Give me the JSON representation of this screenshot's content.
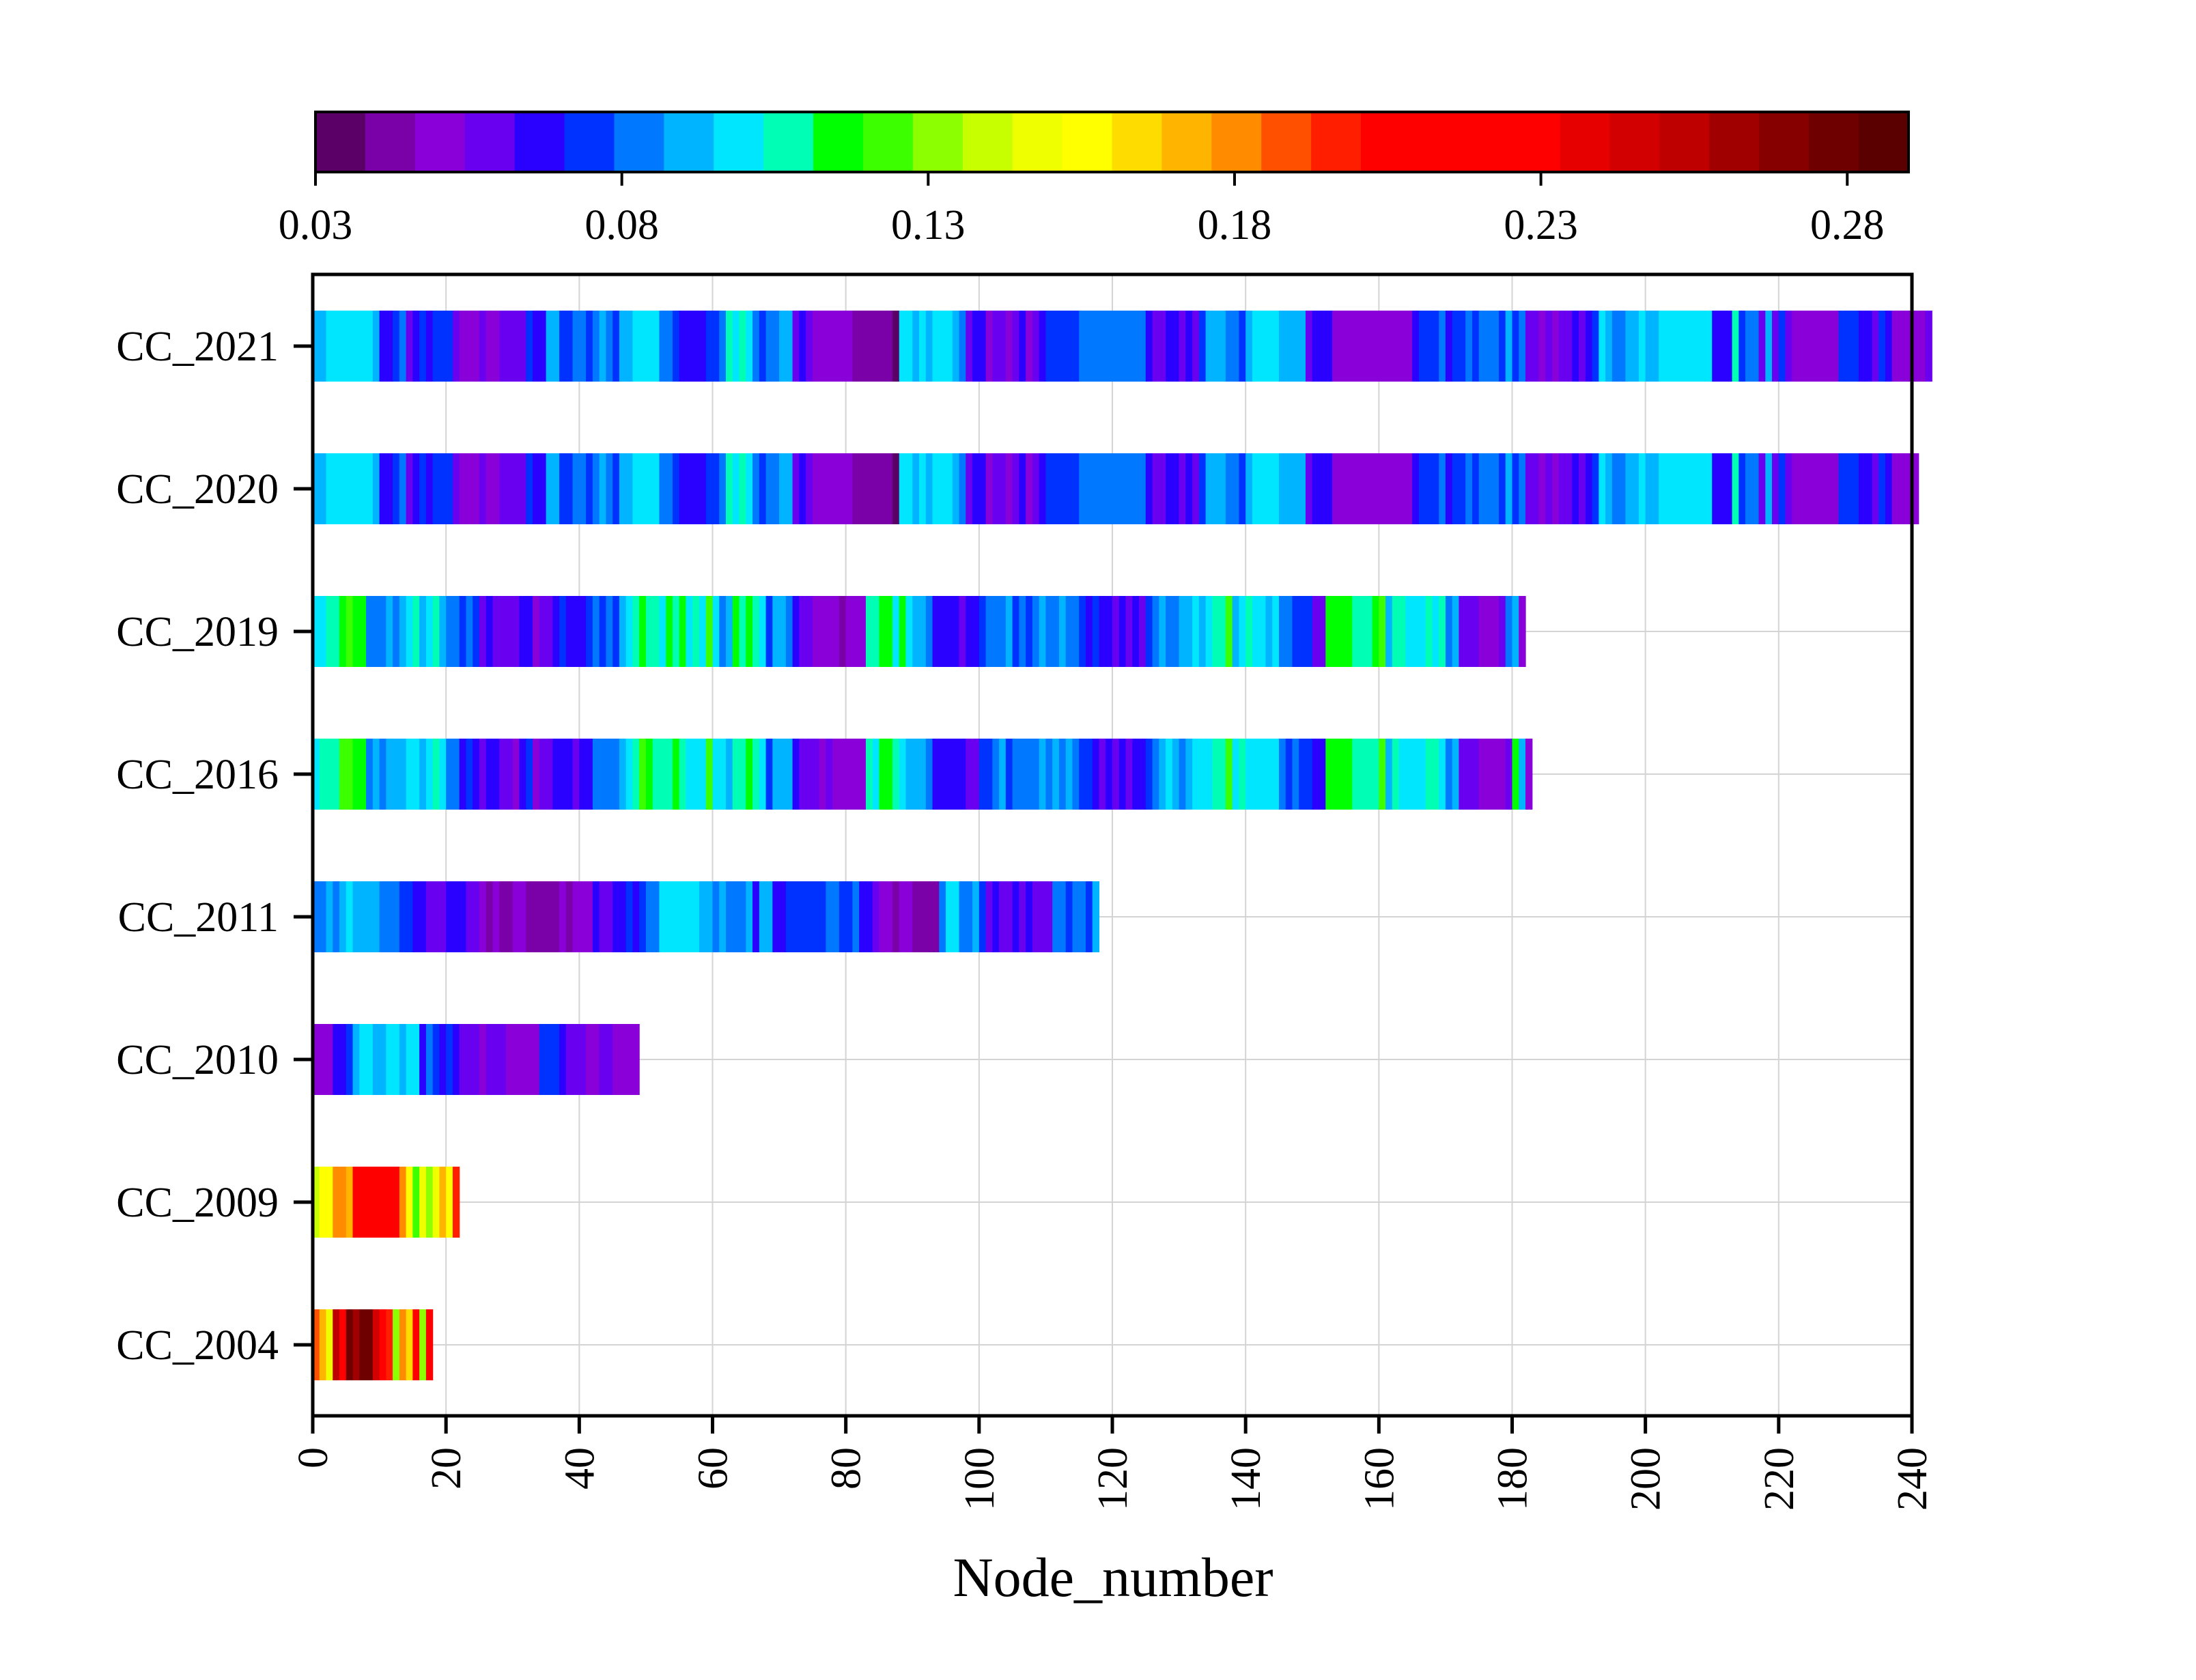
{
  "chart_data": {
    "type": "heatmap",
    "title": "",
    "xlabel": "Node_number",
    "ylabel": "",
    "xlim": [
      0,
      240
    ],
    "x_ticks": [
      0,
      20,
      40,
      60,
      80,
      100,
      120,
      140,
      160,
      180,
      200,
      220,
      240
    ],
    "grid": true,
    "colorbar": {
      "position": "top",
      "range": [
        0.03,
        0.29
      ],
      "ticks": [
        0.03,
        0.08,
        0.13,
        0.18,
        0.23,
        0.28
      ],
      "tick_labels": [
        "0.03",
        "0.08",
        "0.13",
        "0.18",
        "0.23",
        "0.28"
      ],
      "colors": [
        "#5a0066",
        "#7a00a8",
        "#8a00d8",
        "#6a00f0",
        "#2a00ff",
        "#0032ff",
        "#0078ff",
        "#00b4ff",
        "#00e6ff",
        "#00ffb4",
        "#00ff00",
        "#3cff00",
        "#8cff00",
        "#c8ff00",
        "#f0ff00",
        "#ffff00",
        "#ffdc00",
        "#ffb400",
        "#ff8c00",
        "#ff5000",
        "#ff1e00",
        "#ff0000",
        "#ff0000",
        "#ff0000",
        "#ff0000",
        "#e60000",
        "#d20000",
        "#be0000",
        "#a00000",
        "#870000",
        "#6e0000",
        "#5a0000"
      ]
    },
    "series": [
      {
        "name": "CC_2021",
        "values": [
          0.09,
          0.093,
          0.096,
          0.099,
          0.101,
          0.097,
          0.098,
          0.1,
          0.101,
          0.09,
          0.065,
          0.07,
          0.072,
          0.08,
          0.06,
          0.063,
          0.078,
          0.07,
          0.075,
          0.072,
          0.073,
          0.06,
          0.051,
          0.052,
          0.053,
          0.055,
          0.053,
          0.052,
          0.056,
          0.058,
          0.057,
          0.059,
          0.073,
          0.07,
          0.07,
          0.087,
          0.094,
          0.076,
          0.075,
          0.08,
          0.081,
          0.074,
          0.084,
          0.087,
          0.082,
          0.078,
          0.089,
          0.087,
          0.099,
          0.097,
          0.1,
          0.096,
          0.08,
          0.082,
          0.077,
          0.065,
          0.067,
          0.067,
          0.068,
          0.073,
          0.075,
          0.08,
          0.109,
          0.103,
          0.107,
          0.095,
          0.083,
          0.072,
          0.08,
          0.081,
          0.091,
          0.087,
          0.06,
          0.063,
          0.055,
          0.052,
          0.053,
          0.054,
          0.054,
          0.049,
          0.048,
          0.043,
          0.044,
          0.041,
          0.044,
          0.041,
          0.039,
          0.036,
          0.098,
          0.096,
          0.09,
          0.097,
          0.094,
          0.097,
          0.096,
          0.101,
          0.091,
          0.079,
          0.062,
          0.063,
          0.063,
          0.051,
          0.057,
          0.055,
          0.052,
          0.057,
          0.063,
          0.053,
          0.061,
          0.07,
          0.077,
          0.077,
          0.073,
          0.077,
          0.076,
          0.079,
          0.083,
          0.083,
          0.085,
          0.079,
          0.081,
          0.08,
          0.083,
          0.08,
          0.085,
          0.064,
          0.061,
          0.061,
          0.066,
          0.064,
          0.061,
          0.064,
          0.061,
          0.074,
          0.087,
          0.091,
          0.087,
          0.085,
          0.082,
          0.074,
          0.088,
          0.099,
          0.1,
          0.1,
          0.095,
          0.094,
          0.091,
          0.093,
          0.092,
          0.058,
          0.063,
          0.065,
          0.065,
          0.052,
          0.051,
          0.052,
          0.052,
          0.049,
          0.05,
          0.052,
          0.049,
          0.053,
          0.051,
          0.05,
          0.048,
          0.068,
          0.075,
          0.074,
          0.075,
          0.079,
          0.07,
          0.074,
          0.076,
          0.079,
          0.072,
          0.085,
          0.079,
          0.083,
          0.076,
          0.089,
          0.075,
          0.079,
          0.059,
          0.058,
          0.051,
          0.055,
          0.049,
          0.057,
          0.056,
          0.069,
          0.061,
          0.067,
          0.073,
          0.098,
          0.09,
          0.085,
          0.083,
          0.088,
          0.091,
          0.096,
          0.094,
          0.087,
          0.101,
          0.1,
          0.097,
          0.1,
          0.099,
          0.098,
          0.1,
          0.1,
          0.066,
          0.07,
          0.064,
          0.108,
          0.076,
          0.083,
          0.086,
          0.062,
          0.091,
          0.061,
          0.077,
          0.061,
          0.052,
          0.05,
          0.051,
          0.05,
          0.049,
          0.049,
          0.049,
          0.071,
          0.073,
          0.071,
          0.067,
          0.063,
          0.062,
          0.076,
          0.069,
          0.05,
          0.052,
          0.05,
          0.051,
          0.053,
          0.056
        ]
      },
      {
        "name": "CC_2020",
        "values": [
          0.09,
          0.093,
          0.096,
          0.099,
          0.101,
          0.097,
          0.098,
          0.1,
          0.101,
          0.09,
          0.065,
          0.07,
          0.072,
          0.08,
          0.06,
          0.063,
          0.078,
          0.07,
          0.075,
          0.072,
          0.073,
          0.06,
          0.051,
          0.052,
          0.053,
          0.055,
          0.053,
          0.052,
          0.056,
          0.058,
          0.057,
          0.059,
          0.073,
          0.07,
          0.07,
          0.087,
          0.094,
          0.076,
          0.075,
          0.08,
          0.081,
          0.074,
          0.084,
          0.087,
          0.082,
          0.078,
          0.089,
          0.087,
          0.099,
          0.097,
          0.1,
          0.096,
          0.08,
          0.082,
          0.077,
          0.065,
          0.067,
          0.067,
          0.068,
          0.073,
          0.075,
          0.08,
          0.109,
          0.103,
          0.107,
          0.095,
          0.083,
          0.072,
          0.08,
          0.081,
          0.091,
          0.087,
          0.06,
          0.063,
          0.055,
          0.052,
          0.053,
          0.054,
          0.054,
          0.049,
          0.048,
          0.043,
          0.044,
          0.041,
          0.044,
          0.041,
          0.039,
          0.036,
          0.098,
          0.096,
          0.09,
          0.097,
          0.094,
          0.097,
          0.096,
          0.101,
          0.091,
          0.079,
          0.062,
          0.063,
          0.063,
          0.051,
          0.057,
          0.055,
          0.052,
          0.057,
          0.063,
          0.053,
          0.061,
          0.07,
          0.077,
          0.077,
          0.073,
          0.077,
          0.076,
          0.079,
          0.083,
          0.083,
          0.085,
          0.079,
          0.081,
          0.08,
          0.083,
          0.08,
          0.085,
          0.064,
          0.061,
          0.061,
          0.066,
          0.064,
          0.061,
          0.064,
          0.061,
          0.074,
          0.087,
          0.091,
          0.087,
          0.085,
          0.082,
          0.074,
          0.088,
          0.099,
          0.1,
          0.1,
          0.095,
          0.094,
          0.091,
          0.093,
          0.092,
          0.058,
          0.063,
          0.065,
          0.065,
          0.052,
          0.051,
          0.052,
          0.052,
          0.049,
          0.05,
          0.052,
          0.049,
          0.053,
          0.051,
          0.05,
          0.048,
          0.068,
          0.075,
          0.074,
          0.075,
          0.079,
          0.07,
          0.074,
          0.076,
          0.079,
          0.072,
          0.085,
          0.079,
          0.083,
          0.076,
          0.089,
          0.075,
          0.079,
          0.059,
          0.058,
          0.051,
          0.055,
          0.049,
          0.057,
          0.056,
          0.069,
          0.061,
          0.067,
          0.073,
          0.098,
          0.09,
          0.085,
          0.083,
          0.088,
          0.091,
          0.096,
          0.094,
          0.087,
          0.101,
          0.1,
          0.097,
          0.1,
          0.099,
          0.098,
          0.1,
          0.1,
          0.066,
          0.07,
          0.064,
          0.108,
          0.076,
          0.083,
          0.086,
          0.062,
          0.091,
          0.061,
          0.077,
          0.061,
          0.052,
          0.05,
          0.051,
          0.05,
          0.049,
          0.049,
          0.049,
          0.071,
          0.073,
          0.071,
          0.067,
          0.063,
          0.062,
          0.076,
          0.069,
          0.05,
          0.052,
          0.05,
          0.051
        ]
      },
      {
        "name": "CC_2019",
        "values": [
          0.1,
          0.102,
          0.106,
          0.108,
          0.118,
          0.121,
          0.114,
          0.116,
          0.08,
          0.084,
          0.085,
          0.087,
          0.083,
          0.093,
          0.097,
          0.107,
          0.094,
          0.101,
          0.105,
          0.093,
          0.08,
          0.084,
          0.073,
          0.08,
          0.073,
          0.061,
          0.064,
          0.06,
          0.058,
          0.055,
          0.055,
          0.066,
          0.063,
          0.052,
          0.058,
          0.055,
          0.069,
          0.073,
          0.07,
          0.064,
          0.063,
          0.073,
          0.081,
          0.073,
          0.084,
          0.074,
          0.087,
          0.103,
          0.109,
          0.114,
          0.111,
          0.108,
          0.095,
          0.117,
          0.11,
          0.114,
          0.096,
          0.104,
          0.098,
          0.123,
          0.101,
          0.084,
          0.091,
          0.113,
          0.109,
          0.118,
          0.109,
          0.096,
          0.078,
          0.09,
          0.088,
          0.08,
          0.067,
          0.056,
          0.057,
          0.053,
          0.051,
          0.052,
          0.052,
          0.046,
          0.047,
          0.048,
          0.048,
          0.107,
          0.104,
          0.112,
          0.118,
          0.097,
          0.116,
          0.103,
          0.091,
          0.094,
          0.081,
          0.063,
          0.066,
          0.068,
          0.063,
          0.062,
          0.069,
          0.063,
          0.071,
          0.084,
          0.084,
          0.084,
          0.093,
          0.076,
          0.081,
          0.076,
          0.085,
          0.09,
          0.08,
          0.081,
          0.091,
          0.086,
          0.081,
          0.071,
          0.065,
          0.071,
          0.063,
          0.065,
          0.057,
          0.067,
          0.058,
          0.064,
          0.057,
          0.075,
          0.081,
          0.091,
          0.084,
          0.079,
          0.092,
          0.09,
          0.101,
          0.092,
          0.097,
          0.104,
          0.105,
          0.12,
          0.091,
          0.098,
          0.104,
          0.095,
          0.101,
          0.094,
          0.097,
          0.085,
          0.08,
          0.072,
          0.077,
          0.071,
          0.061,
          0.062,
          0.113,
          0.119,
          0.115,
          0.114,
          0.109,
          0.107,
          0.105,
          0.116,
          0.127,
          0.092,
          0.109,
          0.107,
          0.1,
          0.102,
          0.102,
          0.105,
          0.101,
          0.106,
          0.086,
          0.093,
          0.057,
          0.059,
          0.057,
          0.051,
          0.047,
          0.052,
          0.059,
          0.082,
          0.091,
          0.049
        ]
      },
      {
        "name": "CC_2016",
        "values": [
          0.1,
          0.104,
          0.109,
          0.107,
          0.12,
          0.122,
          0.114,
          0.118,
          0.082,
          0.087,
          0.083,
          0.089,
          0.088,
          0.094,
          0.097,
          0.101,
          0.093,
          0.101,
          0.108,
          0.096,
          0.08,
          0.083,
          0.07,
          0.078,
          0.063,
          0.061,
          0.063,
          0.064,
          0.059,
          0.056,
          0.052,
          0.063,
          0.071,
          0.052,
          0.055,
          0.055,
          0.066,
          0.07,
          0.064,
          0.062,
          0.063,
          0.066,
          0.079,
          0.081,
          0.083,
          0.084,
          0.088,
          0.101,
          0.109,
          0.12,
          0.112,
          0.11,
          0.104,
          0.108,
          0.114,
          0.11,
          0.1,
          0.1,
          0.097,
          0.123,
          0.102,
          0.097,
          0.089,
          0.111,
          0.107,
          0.117,
          0.108,
          0.1,
          0.078,
          0.087,
          0.09,
          0.091,
          0.068,
          0.056,
          0.057,
          0.057,
          0.05,
          0.055,
          0.053,
          0.048,
          0.048,
          0.048,
          0.048,
          0.107,
          0.103,
          0.118,
          0.114,
          0.111,
          0.097,
          0.092,
          0.093,
          0.088,
          0.082,
          0.064,
          0.069,
          0.066,
          0.066,
          0.065,
          0.062,
          0.058,
          0.072,
          0.078,
          0.085,
          0.09,
          0.075,
          0.08,
          0.085,
          0.08,
          0.084,
          0.087,
          0.081,
          0.088,
          0.085,
          0.089,
          0.08,
          0.074,
          0.072,
          0.063,
          0.059,
          0.063,
          0.062,
          0.063,
          0.055,
          0.069,
          0.068,
          0.072,
          0.081,
          0.093,
          0.095,
          0.087,
          0.083,
          0.092,
          0.096,
          0.098,
          0.099,
          0.111,
          0.108,
          0.121,
          0.096,
          0.104,
          0.101,
          0.102,
          0.101,
          0.096,
          0.096,
          0.084,
          0.073,
          0.085,
          0.072,
          0.071,
          0.068,
          0.064,
          0.112,
          0.118,
          0.116,
          0.117,
          0.11,
          0.105,
          0.111,
          0.111,
          0.126,
          0.091,
          0.107,
          0.103,
          0.102,
          0.103,
          0.099,
          0.105,
          0.104,
          0.098,
          0.085,
          0.091,
          0.061,
          0.056,
          0.06,
          0.048,
          0.048,
          0.049,
          0.049,
          0.059,
          0.113,
          0.091,
          0.049
        ]
      },
      {
        "name": "CC_2011",
        "values": [
          0.084,
          0.086,
          0.09,
          0.084,
          0.094,
          0.096,
          0.094,
          0.09,
          0.092,
          0.094,
          0.082,
          0.083,
          0.081,
          0.075,
          0.073,
          0.064,
          0.069,
          0.058,
          0.059,
          0.06,
          0.067,
          0.063,
          0.063,
          0.057,
          0.056,
          0.054,
          0.041,
          0.049,
          0.046,
          0.043,
          0.054,
          0.048,
          0.045,
          0.045,
          0.046,
          0.041,
          0.044,
          0.049,
          0.043,
          0.047,
          0.052,
          0.052,
          0.064,
          0.058,
          0.058,
          0.063,
          0.067,
          0.071,
          0.066,
          0.077,
          0.079,
          0.079,
          0.095,
          0.099,
          0.097,
          0.098,
          0.097,
          0.1,
          0.09,
          0.088,
          0.081,
          0.09,
          0.081,
          0.085,
          0.08,
          0.089,
          0.069,
          0.087,
          0.092,
          0.064,
          0.064,
          0.076,
          0.071,
          0.077,
          0.072,
          0.072,
          0.077,
          0.08,
          0.08,
          0.076,
          0.078,
          0.079,
          0.064,
          0.063,
          0.055,
          0.051,
          0.049,
          0.044,
          0.051,
          0.049,
          0.046,
          0.044,
          0.045,
          0.046,
          0.082,
          0.098,
          0.096,
          0.081,
          0.085,
          0.09,
          0.075,
          0.061,
          0.063,
          0.057,
          0.061,
          0.063,
          0.057,
          0.063,
          0.055,
          0.058,
          0.061,
          0.083,
          0.082,
          0.075,
          0.082,
          0.086,
          0.078,
          0.091
        ]
      },
      {
        "name": "CC_2010",
        "values": [
          0.052,
          0.053,
          0.049,
          0.07,
          0.07,
          0.078,
          0.088,
          0.097,
          0.096,
          0.094,
          0.094,
          0.097,
          0.097,
          0.094,
          0.095,
          0.098,
          0.068,
          0.079,
          0.071,
          0.064,
          0.076,
          0.068,
          0.06,
          0.059,
          0.059,
          0.052,
          0.058,
          0.055,
          0.057,
          0.053,
          0.05,
          0.052,
          0.051,
          0.054,
          0.074,
          0.076,
          0.073,
          0.064,
          0.06,
          0.061,
          0.056,
          0.051,
          0.053,
          0.058,
          0.055,
          0.053,
          0.05,
          0.048,
          0.05
        ]
      },
      {
        "name": "CC_2009",
        "values": [
          0.141,
          0.157,
          0.153,
          0.18,
          0.182,
          0.169,
          0.201,
          0.204,
          0.211,
          0.207,
          0.214,
          0.217,
          0.208,
          0.178,
          0.153,
          0.127,
          0.148,
          0.132,
          0.151,
          0.173,
          0.156,
          0.194
        ]
      },
      {
        "name": "CC_2004",
        "values": [
          0.189,
          0.172,
          0.151,
          0.252,
          0.23,
          0.274,
          0.259,
          0.281,
          0.28,
          0.245,
          0.223,
          0.198,
          0.135,
          0.178,
          0.162,
          0.208,
          0.131,
          0.213
        ]
      }
    ]
  }
}
